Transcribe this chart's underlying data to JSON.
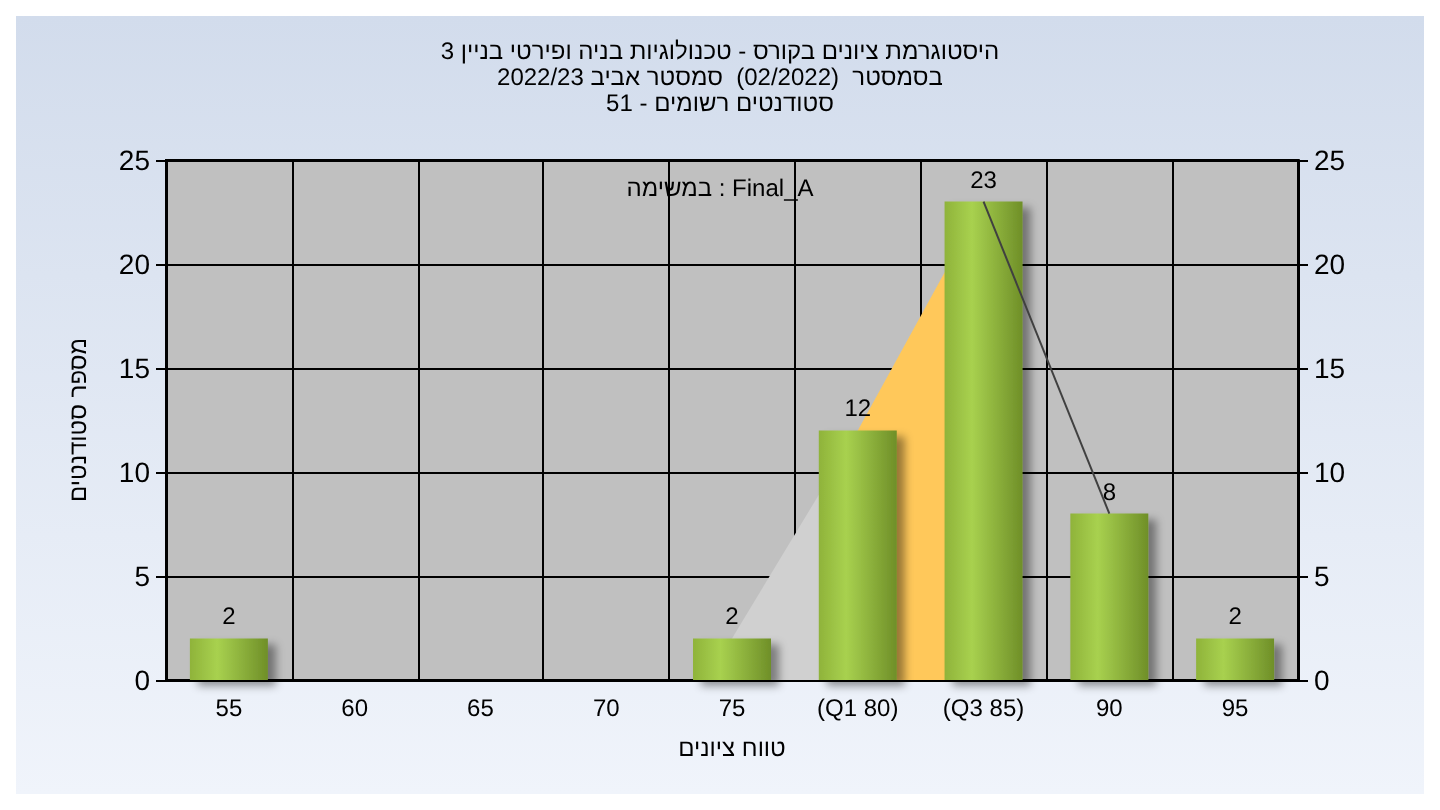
{
  "chart_data": {
    "type": "bar",
    "title": "היסטוגרמת ציונים בקורס - טכנולוגיות בניה ופירטי בניין 3",
    "subtitle": "בסמסטר  (02/2022)  סמסטר אביב 2022/23\nסטודנטים רשומים - 51",
    "xlabel": "טווח ציונים",
    "ylabel": "מספר סטודנטים",
    "annotations": [
      "במשימה : Final_A"
    ],
    "categories": [
      "55",
      "60",
      "65",
      "70",
      "75",
      "(Q1 80)",
      "(Q3 85)",
      "90",
      "95"
    ],
    "series": [
      {
        "type": "area",
        "color": "#d0d0d0",
        "values": [
          null,
          null,
          null,
          null,
          2,
          12,
          null,
          null,
          null
        ]
      },
      {
        "type": "area",
        "color": "#ffc85a",
        "values": [
          null,
          null,
          null,
          null,
          null,
          12,
          23,
          null,
          null
        ]
      },
      {
        "type": "line",
        "color": "#404040",
        "values": [
          null,
          null,
          null,
          null,
          null,
          null,
          23,
          8,
          null
        ]
      },
      {
        "color": "#a8d14f",
        "values": [
          2,
          0,
          0,
          0,
          2,
          12,
          23,
          8,
          2
        ],
        "value_labels": [
          "2",
          null,
          null,
          null,
          "2",
          "12",
          "23",
          "8",
          "2"
        ]
      }
    ],
    "ylim": [
      0,
      25
    ],
    "yticks": [
      0,
      5,
      10,
      15,
      20,
      25
    ],
    "y2lim": [
      0,
      25
    ],
    "y2ticks": [
      0,
      5,
      10,
      15,
      20,
      25
    ],
    "grid": true
  }
}
